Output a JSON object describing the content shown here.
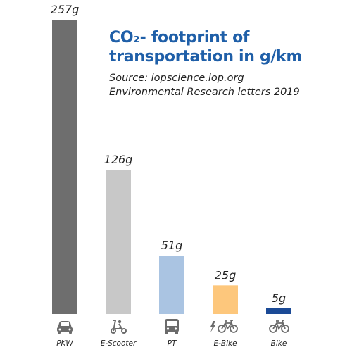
{
  "title": {
    "line1": "CO₂- footprint of",
    "line2": "transportation in g/km"
  },
  "source": {
    "line1": "Source: iopscience.iop.org",
    "line2": "Environmental Research letters 2019"
  },
  "chart_data": {
    "type": "bar",
    "categories": [
      "PKW",
      "E-Scooter",
      "PT",
      "E-Bike",
      "Bike"
    ],
    "values": [
      257,
      126,
      51,
      25,
      5
    ],
    "value_labels": [
      "257g",
      "126g",
      "51g",
      "25g",
      "5g"
    ],
    "unit": "g/km",
    "bar_colors": [
      "#6e6e6e",
      "#c8c8c8",
      "#aac4e2",
      "#fdc77c",
      "#1b4a96"
    ],
    "icons": [
      "car-icon",
      "scooter-icon",
      "bus-icon",
      "ebike-icon",
      "bike-icon"
    ],
    "ylim": [
      0,
      257
    ],
    "grid": false,
    "legend": "none"
  }
}
